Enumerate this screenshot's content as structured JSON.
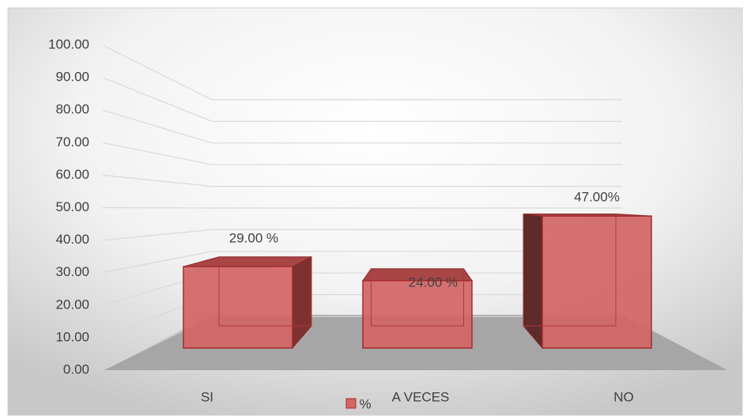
{
  "chart_data": {
    "type": "bar3d",
    "categories": [
      "SI",
      "A VECES",
      "NO"
    ],
    "series": [
      {
        "name": "%",
        "color": "#d36565",
        "values": [
          29,
          24,
          47
        ],
        "value_labels": [
          "29.00 %",
          "24.00  %",
          "47.00%"
        ]
      }
    ],
    "ylim": [
      0,
      100
    ],
    "yticks": [
      {
        "value": 0,
        "label": "0.00"
      },
      {
        "value": 10,
        "label": "10.00"
      },
      {
        "value": 20,
        "label": "20.00"
      },
      {
        "value": 30,
        "label": "30.00"
      },
      {
        "value": 40,
        "label": "40.00"
      },
      {
        "value": 50,
        "label": "50.00"
      },
      {
        "value": 60,
        "label": "60.00"
      },
      {
        "value": 70,
        "label": "70.00"
      },
      {
        "value": 80,
        "label": "80.00"
      },
      {
        "value": 90,
        "label": "90.00"
      },
      {
        "value": 100,
        "label": "100.00"
      }
    ],
    "grid": true,
    "legend": "bottom"
  }
}
